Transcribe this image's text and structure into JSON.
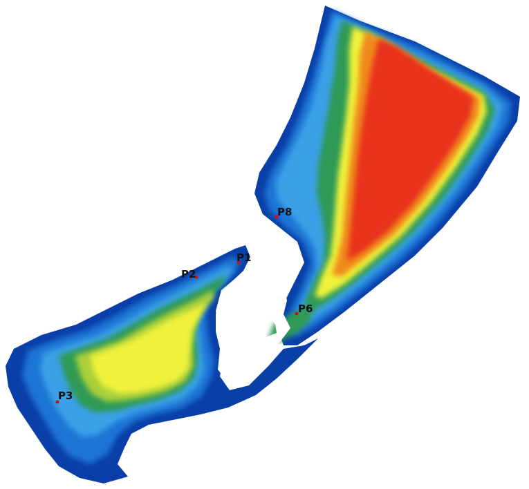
{
  "map": {
    "colors": {
      "deep_blue": "#0a3fa8",
      "blue": "#1f74d6",
      "light_blue": "#3aa0e6",
      "green": "#2f9a55",
      "yellow_green": "#a9cf3a",
      "yellow": "#f0f23a",
      "orange": "#f08a1e",
      "red": "#e8321c"
    },
    "points": [
      {
        "id": "P1",
        "label": "P1"
      },
      {
        "id": "P2",
        "label": "P2"
      },
      {
        "id": "P3",
        "label": "P3"
      },
      {
        "id": "P6",
        "label": "P6"
      },
      {
        "id": "P8",
        "label": "P8"
      }
    ]
  }
}
